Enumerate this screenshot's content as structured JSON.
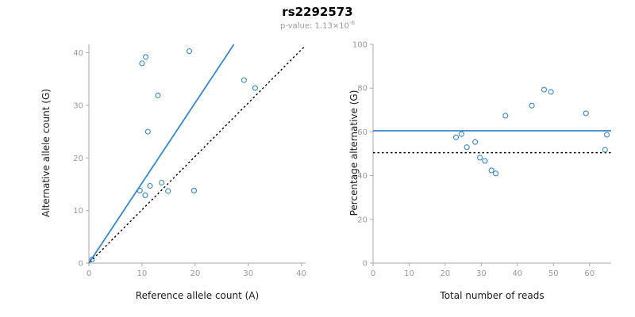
{
  "header": {
    "title": "rs2292573",
    "pvalue_label": "p-value: 1.13×10",
    "pvalue_exponent": "-6"
  },
  "chart_data": [
    {
      "type": "scatter",
      "xlabel": "Reference allele count (A)",
      "ylabel": "Alternative allele count (G)",
      "xlim": [
        0,
        40.8
      ],
      "ylim": [
        0,
        41.6
      ],
      "xticks": [
        0,
        10,
        20,
        30,
        40
      ],
      "yticks": [
        0,
        10,
        20,
        30,
        40
      ],
      "grid": false,
      "axis_color": "#a8a8a8",
      "tick_label_color": "#999999",
      "point_color": "#3987c9",
      "points": [
        [
          0.6,
          0.7
        ],
        [
          10,
          38
        ],
        [
          10.7,
          39.2
        ],
        [
          18.9,
          40.3
        ],
        [
          13,
          31.9
        ],
        [
          11.1,
          25
        ],
        [
          29.2,
          34.8
        ],
        [
          31.3,
          33.3
        ],
        [
          9.6,
          13.8
        ],
        [
          10.6,
          12.9
        ],
        [
          11.5,
          14.7
        ],
        [
          13.7,
          15.3
        ],
        [
          14.9,
          13.7
        ],
        [
          19.8,
          13.8
        ]
      ],
      "lines": [
        {
          "name": "fit-line",
          "style": "solid",
          "color": "#3987c9",
          "width": 1.8,
          "x1": 0,
          "y1": 0,
          "x2": 27.3,
          "y2": 41.6
        },
        {
          "name": "identity-line",
          "style": "dotted",
          "color": "#000000",
          "width": 1.4,
          "x1": 0.2,
          "y1": 0.2,
          "x2": 40.6,
          "y2": 41.2
        }
      ]
    },
    {
      "type": "scatter",
      "xlabel": "Total number of reads",
      "ylabel": "Percentage alternative (G)",
      "xlim": [
        0,
        66
      ],
      "ylim": [
        0,
        100
      ],
      "xticks": [
        0,
        10,
        20,
        30,
        40,
        50,
        60
      ],
      "yticks": [
        0,
        20,
        40,
        60,
        80,
        100
      ],
      "grid": false,
      "axis_color": "#a8a8a8",
      "tick_label_color": "#999999",
      "point_color": "#3987c9",
      "points": [
        [
          23,
          57.5
        ],
        [
          24.5,
          59
        ],
        [
          26,
          53
        ],
        [
          28.3,
          55.4
        ],
        [
          29.6,
          48.2
        ],
        [
          31,
          46.7
        ],
        [
          32.8,
          42.4
        ],
        [
          34,
          41
        ],
        [
          36.7,
          67.4
        ],
        [
          44,
          72
        ],
        [
          47.4,
          79.3
        ],
        [
          49.3,
          78.3
        ],
        [
          59,
          68.5
        ],
        [
          64.8,
          58.7
        ],
        [
          64.3,
          51.8
        ]
      ],
      "lines": [
        {
          "name": "mean-line",
          "style": "solid",
          "color": "#3987c9",
          "width": 1.8,
          "x1": 0,
          "y1": 60.5,
          "x2": 66,
          "y2": 60.5
        },
        {
          "name": "expected-line",
          "style": "dotted",
          "color": "#000000",
          "width": 1.4,
          "x1": 0,
          "y1": 50.5,
          "x2": 66,
          "y2": 50.5
        }
      ]
    }
  ]
}
